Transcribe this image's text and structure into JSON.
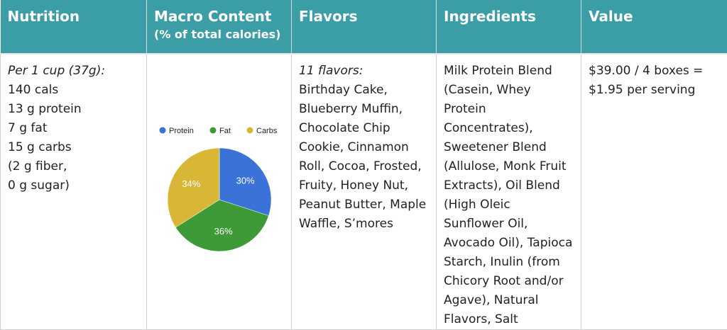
{
  "header": {
    "nutrition": "Nutrition",
    "macro_title": "Macro Content",
    "macro_subtitle": "(% of total calories)",
    "flavors": "Flavors",
    "ingredients": "Ingredients",
    "value": "Value"
  },
  "nutrition": {
    "intro": "Per 1 cup (37g):",
    "lines": [
      "140 cals",
      "13 g protein",
      "7 g fat",
      "15 g carbs",
      "(2 g fiber,",
      "0 g sugar)"
    ]
  },
  "flavors": {
    "intro": "11 flavors:",
    "text": "Birthday Cake, Blueberry Muffin, Chocolate Chip Cookie, Cinnamon Roll, Cocoa, Frosted, Fruity, Honey Nut, Peanut Butter, Maple Waffle, S’mores"
  },
  "ingredients": {
    "text": "Milk Protein Blend (Casein, Whey Protein Concentrates), Sweetener Blend (Allulose, Monk Fruit Extracts), Oil Blend (High Oleic Sunflower Oil, Avocado Oil), Tapioca Starch, Inulin (from Chicory Root and/or Agave), Natural Flavors, Salt"
  },
  "value": {
    "text": "$39.00 / 4 boxes = $1.95 per serving"
  },
  "chart_data": {
    "type": "pie",
    "categories": [
      "Protein",
      "Fat",
      "Carbs"
    ],
    "values": [
      30,
      36,
      34
    ],
    "labels": [
      "30%",
      "36%",
      "34%"
    ],
    "colors": [
      "#3a72d8",
      "#3d9a37",
      "#d8b736"
    ],
    "legend": "top"
  }
}
